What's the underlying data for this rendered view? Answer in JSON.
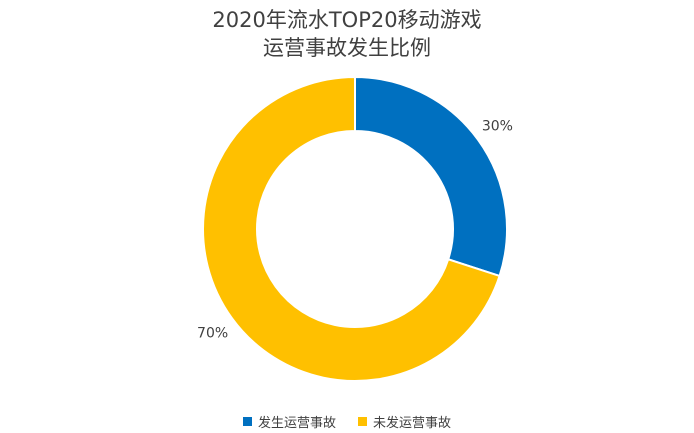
{
  "chart_data": {
    "type": "pie",
    "variant": "donut",
    "title": "2020年流水TOP20移动游戏",
    "subtitle": "运营事故发生比例",
    "series": [
      {
        "name": "发生运营事故",
        "value": 30,
        "label": "30%",
        "color": "#0070C0"
      },
      {
        "name": "未发运营事故",
        "value": 70,
        "label": "70%",
        "color": "#FFC000"
      }
    ],
    "legend_position": "bottom"
  }
}
